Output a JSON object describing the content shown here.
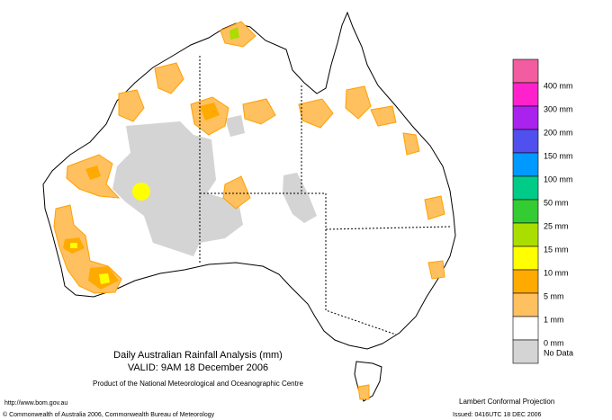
{
  "title": {
    "line1": "Daily Australian Rainfall Analysis (mm)",
    "line2": "VALID: 9AM 18 December 2006",
    "line3": "Product of the National Meteorological and Oceanographic Centre"
  },
  "footer": {
    "url": "http://www.bom.gov.au",
    "copyright": "© Commonwealth of Australia 2006, Commonwealth Bureau of Meteorology",
    "projection": "Lambert Conformal Projection",
    "issued": "Issued: 0416UTC 18 DEC 2006"
  },
  "legend": {
    "colors": [
      "#f25ca0",
      "#ff22cc",
      "#aa22ee",
      "#5050ee",
      "#0099ff",
      "#00cc88",
      "#33cc33",
      "#aadd00",
      "#ffff00",
      "#ffaa00",
      "#ffc060",
      "#ffffff",
      "#d4d4d4"
    ],
    "labels": [
      "400 mm",
      "300 mm",
      "200 mm",
      "150 mm",
      "100 mm",
      "50 mm",
      "25 mm",
      "15 mm",
      "10 mm",
      "5 mm",
      "1 mm",
      "0 mm",
      "No Data"
    ]
  }
}
